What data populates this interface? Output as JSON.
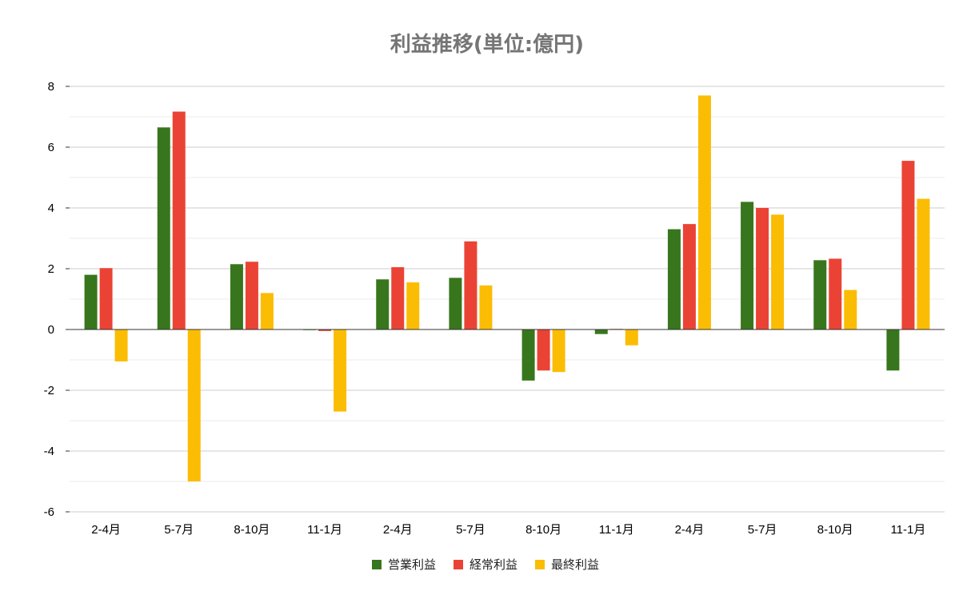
{
  "chart_data": {
    "type": "bar",
    "title": "利益推移(単位:億円)",
    "xlabel": "",
    "ylabel": "",
    "categories": [
      "2-4月",
      "5-7月",
      "8-10月",
      "11-1月",
      "2-4月",
      "5-7月",
      "8-10月",
      "11-1月",
      "2-4月",
      "5-7月",
      "8-10月",
      "11-1月"
    ],
    "ylim": [
      -6,
      8
    ],
    "yticks": [
      -6,
      -4,
      -2,
      0,
      2,
      4,
      6,
      8
    ],
    "yticks_labels": [
      "-6",
      "-4",
      "-2",
      "0",
      "2",
      "4",
      "6",
      "8"
    ],
    "grid": true,
    "legend_position": "bottom",
    "series": [
      {
        "name": "営業利益",
        "color": "#38761d",
        "values": [
          1.8,
          6.65,
          2.15,
          0.0,
          1.65,
          1.7,
          -1.68,
          -0.15,
          3.3,
          4.2,
          2.28,
          -1.35
        ]
      },
      {
        "name": "経常利益",
        "color": "#ea4335",
        "values": [
          2.02,
          7.17,
          2.23,
          -0.05,
          2.05,
          2.9,
          -1.35,
          0.02,
          3.47,
          4.0,
          2.33,
          5.55
        ]
      },
      {
        "name": "最終利益",
        "color": "#fbbc04",
        "values": [
          -1.05,
          -5.0,
          1.2,
          -2.7,
          1.55,
          1.45,
          -1.4,
          -0.52,
          7.7,
          3.78,
          1.3,
          4.3
        ]
      }
    ]
  }
}
